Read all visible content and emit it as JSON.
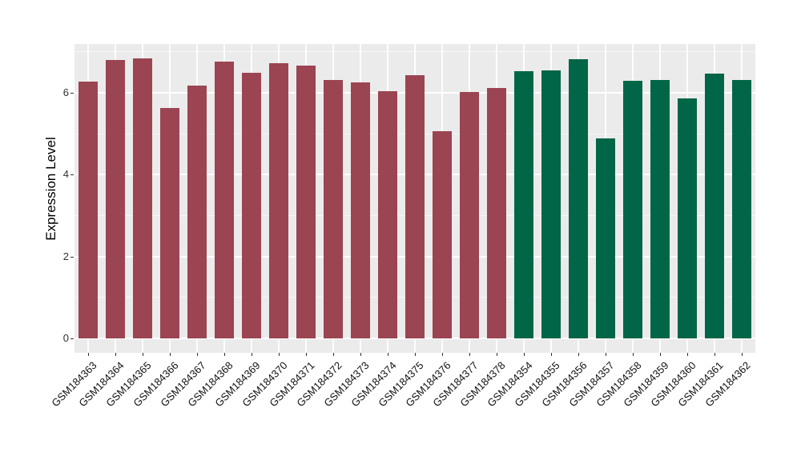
{
  "chart_data": {
    "type": "bar",
    "title": "",
    "xlabel": "",
    "ylabel": "Expression Level",
    "ylim": [
      -0.35,
      7.19
    ],
    "yticks": [
      0,
      2,
      4,
      6
    ],
    "yticks_minor": [
      1,
      3,
      5,
      7
    ],
    "grid": true,
    "legend_position": "none",
    "categories": [
      "GSM184363",
      "GSM184364",
      "GSM184365",
      "GSM184366",
      "GSM184367",
      "GSM184368",
      "GSM184369",
      "GSM184370",
      "GSM184371",
      "GSM184372",
      "GSM184373",
      "GSM184374",
      "GSM184375",
      "GSM184376",
      "GSM184377",
      "GSM184378",
      "GSM184354",
      "GSM184355",
      "GSM184356",
      "GSM184357",
      "GSM184358",
      "GSM184359",
      "GSM184360",
      "GSM184361",
      "GSM184362"
    ],
    "values": [
      6.28,
      6.79,
      6.83,
      5.63,
      6.17,
      6.77,
      6.49,
      6.73,
      6.67,
      6.31,
      6.26,
      6.04,
      6.42,
      5.07,
      6.02,
      6.12,
      6.52,
      6.54,
      6.81,
      4.88,
      6.29,
      6.31,
      5.87,
      6.47,
      6.31
    ],
    "groups": [
      "group1",
      "group1",
      "group1",
      "group1",
      "group1",
      "group1",
      "group1",
      "group1",
      "group1",
      "group1",
      "group1",
      "group1",
      "group1",
      "group1",
      "group1",
      "group1",
      "group2",
      "group2",
      "group2",
      "group2",
      "group2",
      "group2",
      "group2",
      "group2",
      "group2"
    ],
    "group_colors": {
      "group1": "#9B4452",
      "group2": "#016647"
    }
  },
  "style": {
    "panel_background": "#EBEBEB",
    "grid_color": "#FFFFFF",
    "axis_tick_color": "#333333",
    "figure_background": "#FFFFFF"
  }
}
